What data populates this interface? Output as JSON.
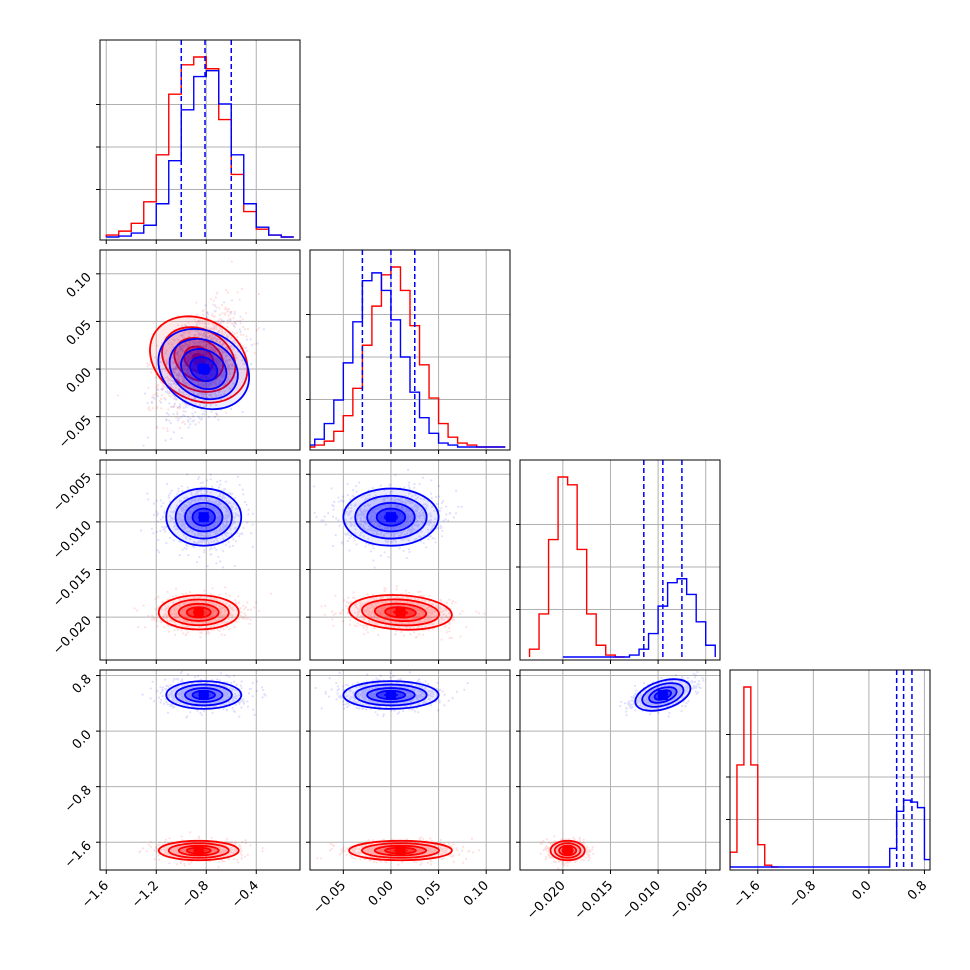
{
  "chart_data": {
    "type": "scatter",
    "title": "",
    "layout": "corner-plot",
    "n_params": 4,
    "colors": {
      "blue": "#0000ff",
      "red": "#ff0000"
    },
    "grid": true,
    "axes": [
      {
        "range": [
          -1.65,
          -0.05
        ],
        "ticks": [
          -1.6,
          -1.2,
          -0.8,
          -0.4
        ],
        "tick_labels": [
          "−1.6",
          "−1.2",
          "−0.8",
          "−0.4"
        ]
      },
      {
        "range": [
          -0.085,
          0.125
        ],
        "ticks": [
          -0.05,
          0.0,
          0.05,
          0.1
        ],
        "tick_labels": [
          "−0.05",
          "0.00",
          "0.05",
          "0.10"
        ]
      },
      {
        "range": [
          -0.0245,
          -0.0035
        ],
        "ticks": [
          -0.02,
          -0.015,
          -0.01,
          -0.005
        ],
        "tick_labels": [
          "−0.020",
          "−0.015",
          "−0.010",
          "−0.005"
        ]
      },
      {
        "range": [
          -2.0,
          0.88
        ],
        "ticks": [
          -1.6,
          -0.8,
          0.0,
          0.8
        ],
        "tick_labels": [
          "−1.6",
          "−0.8",
          "0.0",
          "0.8"
        ]
      }
    ],
    "series": [
      {
        "color": "blue",
        "quantiles": [
          [
            -1.0,
            -0.81,
            -0.6
          ],
          [
            -0.03,
            0.0,
            0.025
          ],
          [
            -0.0115,
            -0.0095,
            -0.0075
          ],
          [
            0.4,
            0.5,
            0.62
          ]
        ],
        "hist": [
          {
            "edges": [
              -1.6,
              -1.5,
              -1.4,
              -1.3,
              -1.2,
              -1.1,
              -1.0,
              -0.9,
              -0.8,
              -0.7,
              -0.6,
              -0.5,
              -0.4,
              -0.3,
              -0.2,
              -0.1
            ],
            "counts": [
              0,
              0.5,
              2,
              6,
              17,
              39,
              65,
              82,
              85,
              68,
              42,
              17,
              5,
              1,
              0
            ]
          },
          {
            "edges": [
              -0.09,
              -0.08,
              -0.07,
              -0.06,
              -0.05,
              -0.04,
              -0.03,
              -0.02,
              -0.01,
              0.0,
              0.01,
              0.02,
              0.03,
              0.04,
              0.05,
              0.06,
              0.07,
              0.08,
              0.09,
              0.1,
              0.11,
              0.12
            ],
            "counts": [
              1,
              4,
              12,
              24,
              43,
              64,
              85,
              89,
              80,
              65,
              46,
              28,
              15,
              7,
              2,
              1,
              0,
              0,
              0,
              0,
              0
            ]
          },
          {
            "edges": [
              -0.02,
              -0.019,
              -0.018,
              -0.017,
              -0.016,
              -0.015,
              -0.014,
              -0.013,
              -0.012,
              -0.011,
              -0.01,
              -0.009,
              -0.008,
              -0.007,
              -0.006,
              -0.005,
              -0.004
            ],
            "counts": [
              0,
              0,
              0,
              0,
              0,
              0,
              0,
              1,
              4,
              12,
              26,
              38,
              40,
              32,
              18,
              6
            ]
          },
          {
            "edges": [
              -2.0,
              -1.9,
              -1.8,
              -1.7,
              -1.6,
              -1.5,
              -1.4,
              -1.3,
              -1.2,
              -1.1,
              -1.0,
              -0.9,
              -0.8,
              -0.7,
              -0.6,
              -0.5,
              -0.4,
              -0.3,
              -0.2,
              -0.1,
              0.0,
              0.1,
              0.2,
              0.3,
              0.4,
              0.5,
              0.6,
              0.7,
              0.8,
              0.9
            ],
            "counts": [
              0,
              0,
              0,
              0,
              0,
              0,
              0,
              0,
              0,
              0,
              0,
              0,
              0,
              0,
              0,
              0,
              0,
              0,
              0,
              0,
              0,
              0,
              0,
              10,
              30,
              36,
              35,
              32,
              4
            ]
          }
        ],
        "centers": [
          [
            -0.82,
            0.0,
            -0.0095,
            0.52
          ]
        ],
        "sigma": [
          0.15,
          0.025,
          0.0015,
          0.1
        ],
        "corr": [
          [
            0,
            0.4,
            0,
            0
          ],
          [
            0.4,
            0,
            0,
            0
          ],
          [
            0,
            0,
            0,
            0.55
          ],
          [
            0,
            0,
            0.55,
            0
          ]
        ]
      },
      {
        "color": "red",
        "quantiles": [],
        "hist": [
          {
            "edges": [
              -1.6,
              -1.5,
              -1.4,
              -1.3,
              -1.2,
              -1.1,
              -1.0,
              -0.9,
              -0.8,
              -0.7,
              -0.6,
              -0.5,
              -0.4,
              -0.3,
              -0.2,
              -0.1
            ],
            "counts": [
              1,
              3,
              7,
              18,
              42,
              73,
              88,
              92,
              86,
              60,
              32,
              13,
              4,
              1,
              0
            ]
          },
          {
            "edges": [
              -0.09,
              -0.08,
              -0.07,
              -0.06,
              -0.05,
              -0.04,
              -0.03,
              -0.02,
              -0.01,
              0.0,
              0.01,
              0.02,
              0.03,
              0.04,
              0.05,
              0.06,
              0.07,
              0.08,
              0.09,
              0.1,
              0.11,
              0.12
            ],
            "counts": [
              0,
              1,
              3,
              8,
              16,
              30,
              52,
              72,
              88,
              92,
              80,
              62,
              42,
              25,
              12,
              5,
              2,
              1,
              0,
              0,
              0
            ]
          },
          {
            "edges": [
              -0.0235,
              -0.0225,
              -0.0215,
              -0.0205,
              -0.0195,
              -0.0185,
              -0.0175,
              -0.0165,
              -0.0155,
              -0.0145,
              -0.0135
            ],
            "counts": [
              4,
              22,
              60,
              92,
              88,
              55,
              22,
              6,
              1,
              0
            ]
          },
          {
            "edges": [
              -2.0,
              -1.9,
              -1.8,
              -1.7,
              -1.6,
              -1.5,
              -1.4,
              -1.3
            ],
            "counts": [
              8,
              55,
              97,
              55,
              12,
              1,
              0
            ]
          }
        ],
        "centers": [
          [
            -0.86,
            0.01,
            -0.0195,
            -1.72
          ]
        ],
        "sigma": [
          0.16,
          0.027,
          0.0009,
          0.07
        ],
        "corr": [
          [
            0,
            0.45,
            0,
            0
          ],
          [
            0.45,
            0,
            -0.15,
            0
          ],
          [
            0,
            -0.15,
            0,
            0
          ],
          [
            0,
            0,
            0,
            0
          ]
        ]
      }
    ]
  }
}
